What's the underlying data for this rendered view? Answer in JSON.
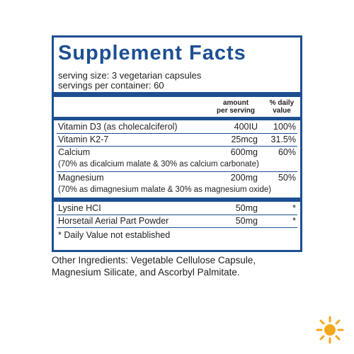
{
  "header": {
    "title": "Supplement Facts",
    "serving_size": "serving size: 3 vegetarian capsules",
    "servings": "servings per container: 60"
  },
  "columns": {
    "amount": [
      "amount",
      "per serving"
    ],
    "dv": [
      "% daily",
      "value"
    ]
  },
  "groups": [
    [
      {
        "name": "Vitamin D3 (as cholecalciferol)",
        "amount": "400IU",
        "dv": "100%"
      },
      {
        "name": "Vitamin K2-7",
        "amount": "25mcg",
        "dv": "31.5%"
      },
      {
        "name": "Calcium",
        "amount": "600mg",
        "dv": "60%",
        "note": "(70% as dicalcium malate & 30% as calcium carbonate)"
      },
      {
        "name": "Magnesium",
        "amount": "200mg",
        "dv": "50%",
        "note": "(70% as dimagnesium malate & 30% as magnesium oxide)"
      }
    ],
    [
      {
        "name": "Lysine HCI",
        "amount": "50mg",
        "dv": "*"
      },
      {
        "name": "Horsetail Aerial Part Powder",
        "amount": "50mg",
        "dv": "*"
      }
    ]
  ],
  "footnote": "* Daily Value not established",
  "other_ingredients": [
    "Other Ingredients: Vegetable Cellulose Capsule,",
    "Magnesium Silicate, and Ascorbyl Palmitate."
  ]
}
